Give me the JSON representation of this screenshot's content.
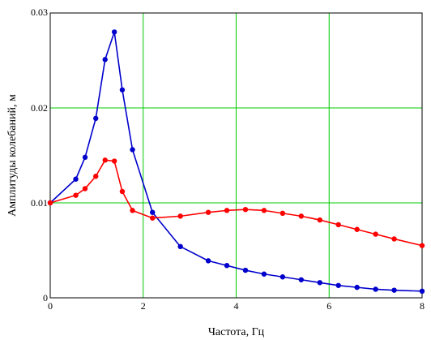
{
  "chart_data": {
    "type": "line",
    "xlabel": "Частота, Гц",
    "ylabel": "Амплитуды колебаний, м",
    "xlim": [
      0,
      8
    ],
    "ylim": [
      0,
      0.03
    ],
    "x_ticks": [
      0,
      2,
      4,
      6,
      8
    ],
    "x_tick_labels": [
      "0",
      "2",
      "4",
      "6",
      "8"
    ],
    "y_ticks": [
      0,
      0.01,
      0.02,
      0.03
    ],
    "y_tick_labels": [
      "0",
      "0.01",
      "0.02",
      "0.03"
    ],
    "grid": true,
    "grid_color": "#00cc00",
    "series": [
      {
        "color": "#0000cc",
        "x": [
          0,
          0.55,
          0.75,
          0.98,
          1.18,
          1.38,
          1.55,
          1.77,
          2.2,
          2.8,
          3.4,
          3.8,
          4.2,
          4.6,
          5.0,
          5.4,
          5.8,
          6.2,
          6.6,
          7.0,
          7.4,
          8.0
        ],
        "y": [
          0.01,
          0.0125,
          0.0148,
          0.0189,
          0.0251,
          0.028,
          0.0219,
          0.0156,
          0.009,
          0.0054,
          0.0039,
          0.0034,
          0.0029,
          0.0025,
          0.0022,
          0.0019,
          0.0016,
          0.0013,
          0.0011,
          0.0009,
          0.0008,
          0.0007
        ]
      },
      {
        "color": "#ff0000",
        "x": [
          0,
          0.55,
          0.75,
          0.98,
          1.18,
          1.38,
          1.55,
          1.77,
          2.2,
          2.8,
          3.4,
          3.8,
          4.2,
          4.6,
          5.0,
          5.4,
          5.8,
          6.2,
          6.6,
          7.0,
          7.4,
          8.0
        ],
        "y": [
          0.01,
          0.0108,
          0.0115,
          0.0128,
          0.0145,
          0.0144,
          0.0112,
          0.0092,
          0.0084,
          0.0086,
          0.009,
          0.0092,
          0.0093,
          0.0092,
          0.0089,
          0.0086,
          0.0082,
          0.0077,
          0.0072,
          0.0067,
          0.0062,
          0.0055
        ]
      }
    ]
  }
}
